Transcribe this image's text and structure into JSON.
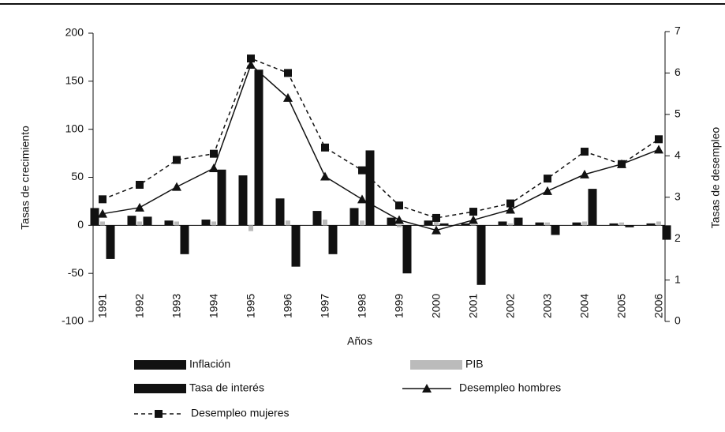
{
  "chart_data": {
    "type": "bar",
    "x_label": "Años",
    "y_label": "Tasas de crecimiento",
    "y2_label": "Tasas de desempleo",
    "categories": [
      "1991",
      "1992",
      "1993",
      "1994",
      "1995",
      "1996",
      "1997",
      "1998",
      "1999",
      "2000",
      "2001",
      "2002",
      "2003",
      "2004",
      "2005",
      "2006"
    ],
    "ylim": [
      -100,
      200
    ],
    "yticks": [
      -100,
      -50,
      0,
      50,
      100,
      150,
      200
    ],
    "y2lim": [
      0,
      7
    ],
    "y2ticks": [
      0,
      1,
      2,
      3,
      4,
      5,
      6,
      7
    ],
    "series": [
      {
        "name": "Inflación",
        "type": "bar",
        "color": "#111111",
        "values": [
          18,
          10,
          5,
          6,
          52,
          28,
          15,
          18,
          8,
          5,
          2,
          4,
          3,
          3,
          2,
          2
        ]
      },
      {
        "name": "PIB",
        "type": "bar",
        "color": "#bbbbbb",
        "values": [
          4,
          4,
          4,
          4,
          -6,
          5,
          6,
          5,
          -2,
          4,
          1,
          2,
          3,
          4,
          3,
          4
        ]
      },
      {
        "name": "Tasa de interés",
        "type": "bar",
        "color": "#111111",
        "values": [
          -35,
          9,
          -30,
          58,
          162,
          -43,
          -30,
          78,
          -50,
          2,
          -62,
          8,
          -10,
          38,
          -2,
          -15
        ]
      },
      {
        "name": "Desempleo hombres",
        "type": "line",
        "axis": "y2",
        "marker": "triangle",
        "dashed": false,
        "color": "#111111",
        "values": [
          2.6,
          2.75,
          3.25,
          3.7,
          6.2,
          5.4,
          3.5,
          2.95,
          2.45,
          2.2,
          2.45,
          2.7,
          3.15,
          3.55,
          3.8,
          4.15
        ]
      },
      {
        "name": "Desempleo mujeres",
        "type": "line",
        "axis": "y2",
        "marker": "square",
        "dashed": true,
        "color": "#111111",
        "values": [
          2.95,
          3.3,
          3.9,
          4.05,
          6.35,
          6.0,
          4.2,
          3.65,
          2.8,
          2.5,
          2.65,
          2.85,
          3.45,
          4.1,
          3.8,
          4.4
        ]
      }
    ]
  }
}
